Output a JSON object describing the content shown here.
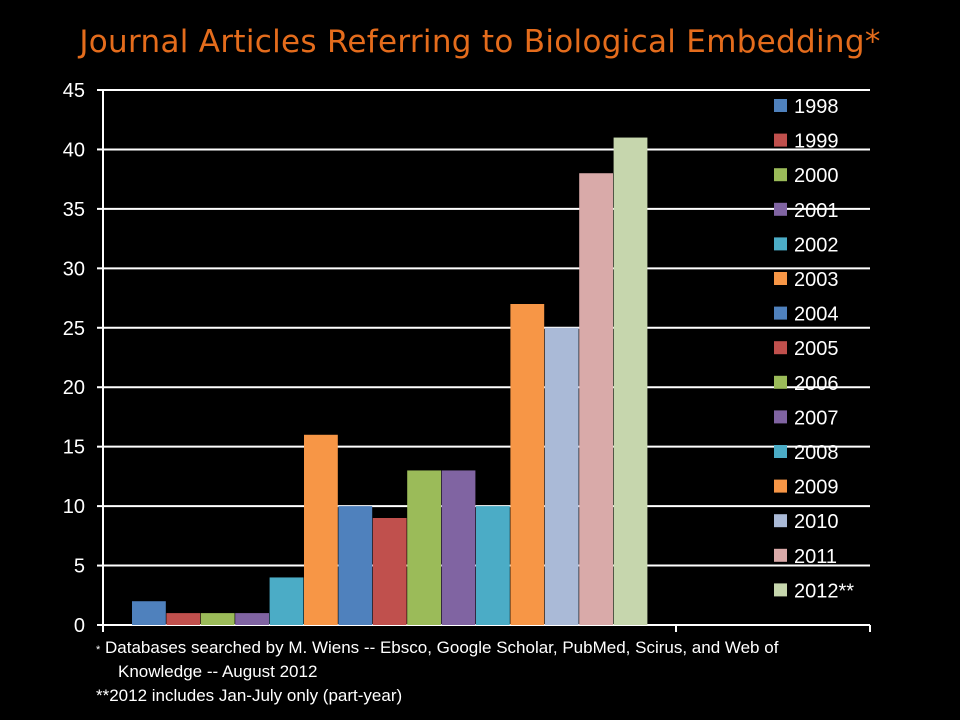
{
  "title": "Journal Articles Referring to Biological Embedding*",
  "footnotes": {
    "line1_star": "*",
    "line1_text": "Databases searched by M. Wiens -- Ebsco, Google Scholar, PubMed, Scirus, and Web of",
    "line2_text": "Knowledge -- August 2012",
    "line3_text": "**2012 includes Jan-July only (part-year)"
  },
  "chart_data": {
    "type": "bar",
    "title": "Journal Articles Referring to Biological Embedding*",
    "xlabel": "",
    "ylabel": "",
    "ylim": [
      0,
      45
    ],
    "yticks": [
      0,
      5,
      10,
      15,
      20,
      25,
      30,
      35,
      40,
      45
    ],
    "grid": true,
    "legend_position": "right",
    "series": [
      {
        "name": "1998",
        "value": 2,
        "color": "#4f81bd"
      },
      {
        "name": "1999",
        "value": 1,
        "color": "#c0504d"
      },
      {
        "name": "2000",
        "value": 1,
        "color": "#9bbb59"
      },
      {
        "name": "2001",
        "value": 1,
        "color": "#8064a2"
      },
      {
        "name": "2002",
        "value": 4,
        "color": "#4bacc6"
      },
      {
        "name": "2003",
        "value": 16,
        "color": "#f79646"
      },
      {
        "name": "2004",
        "value": 10,
        "color": "#4f81bd"
      },
      {
        "name": "2005",
        "value": 9,
        "color": "#c0504d"
      },
      {
        "name": "2006",
        "value": 13,
        "color": "#9bbb59"
      },
      {
        "name": "2007",
        "value": 13,
        "color": "#8064a2"
      },
      {
        "name": "2008",
        "value": 10,
        "color": "#4bacc6"
      },
      {
        "name": "2009",
        "value": 27,
        "color": "#f79646"
      },
      {
        "name": "2010",
        "value": 25,
        "color": "#aabad7"
      },
      {
        "name": "2011",
        "value": 38,
        "color": "#d9aaa9"
      },
      {
        "name": "2012**",
        "value": 41,
        "color": "#c6d6ad"
      }
    ]
  }
}
